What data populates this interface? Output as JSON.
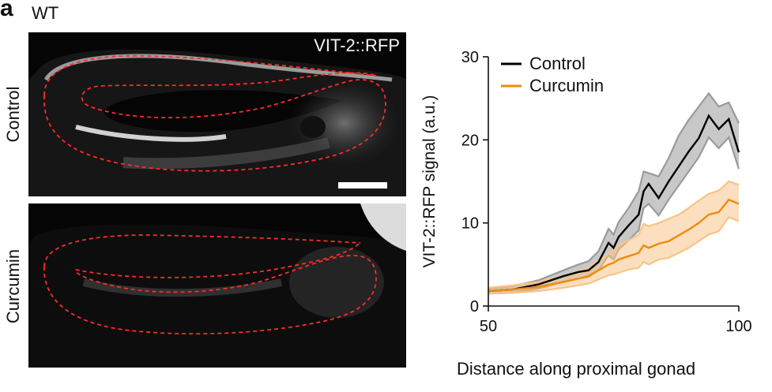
{
  "figure": {
    "panel_letter": "a",
    "genotype": "WT",
    "channel_label": "VIT-2::RFP",
    "row_labels": [
      "Control",
      "Curcumin"
    ]
  },
  "chart_data": {
    "type": "line",
    "title": "",
    "xlabel": "Distance along proximal gonad",
    "ylabel": "VIT-2::RFP signal (a.u.)",
    "xlim": [
      50,
      100
    ],
    "ylim": [
      0,
      30
    ],
    "xticks": [
      "50",
      "100"
    ],
    "yticks": [
      "0",
      "10",
      "20",
      "30"
    ],
    "grid": false,
    "legend": "top-left",
    "x": [
      50,
      55,
      60,
      65,
      68,
      70,
      72,
      74,
      75,
      76,
      78,
      80,
      81,
      82,
      84,
      86,
      88,
      90,
      92,
      94,
      96,
      98,
      100
    ],
    "series": [
      {
        "name": "Control",
        "color": "#000000",
        "values": [
          1.8,
          2.0,
          2.6,
          3.6,
          4.1,
          4.3,
          5.3,
          7.6,
          7.0,
          8.3,
          9.7,
          11.0,
          13.8,
          14.7,
          13.0,
          15.0,
          16.8,
          18.6,
          20.2,
          22.9,
          21.3,
          22.5,
          18.5
        ],
        "band_upper": [
          2.1,
          2.4,
          3.1,
          4.3,
          5.0,
          5.4,
          6.6,
          9.3,
          8.6,
          10.1,
          11.8,
          13.8,
          16.2,
          16.0,
          15.6,
          17.8,
          20.5,
          22.4,
          24.0,
          25.6,
          24.0,
          24.5,
          22.0
        ],
        "band_lower": [
          1.5,
          1.6,
          2.1,
          2.9,
          3.3,
          3.5,
          4.3,
          6.1,
          5.6,
          6.8,
          7.9,
          9.1,
          11.8,
          12.3,
          10.9,
          12.8,
          14.5,
          16.2,
          17.9,
          20.3,
          19.0,
          20.3,
          16.5
        ],
        "band_color": "#9a9a9a"
      },
      {
        "name": "Curcumin",
        "color": "#ef8a10",
        "values": [
          1.8,
          2.0,
          2.3,
          2.9,
          3.3,
          3.6,
          4.3,
          5.0,
          5.2,
          5.6,
          6.0,
          6.4,
          7.3,
          7.0,
          7.5,
          7.8,
          8.5,
          9.2,
          10.0,
          11.0,
          11.3,
          12.8,
          12.3
        ],
        "band_upper": [
          2.2,
          2.5,
          2.9,
          3.6,
          4.2,
          4.6,
          5.4,
          6.3,
          6.8,
          7.3,
          7.9,
          8.6,
          9.9,
          9.6,
          10.0,
          10.5,
          11.0,
          11.8,
          12.7,
          13.5,
          13.9,
          15.0,
          14.6
        ],
        "band_lower": [
          1.5,
          1.6,
          1.8,
          2.2,
          2.5,
          2.7,
          3.2,
          3.7,
          3.8,
          4.0,
          4.4,
          4.6,
          5.3,
          5.0,
          5.6,
          5.8,
          6.4,
          7.0,
          7.8,
          8.6,
          9.0,
          10.7,
          10.2
        ],
        "band_color": "#f8c488"
      }
    ]
  }
}
